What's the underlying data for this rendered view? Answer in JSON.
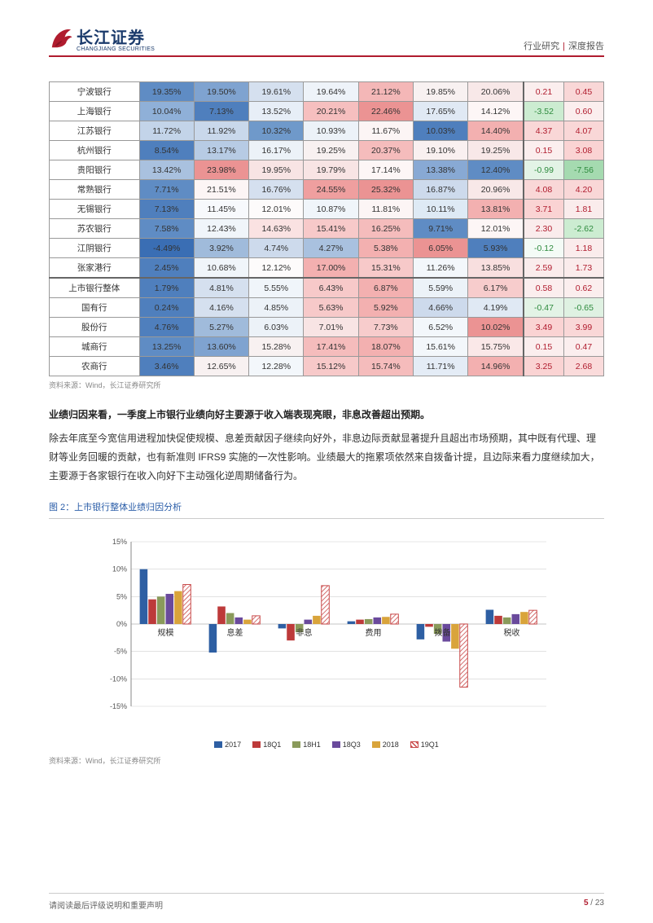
{
  "header": {
    "logo_cn": "长江证券",
    "logo_en": "CHANGJIANG SECURITIES",
    "category1": "行业研究",
    "category2": "深度报告"
  },
  "table": {
    "rows": [
      {
        "label": "宁波银行",
        "cells": [
          "19.35%",
          "19.50%",
          "19.61%",
          "19.64%",
          "21.12%",
          "19.85%",
          "20.06%",
          "0.21",
          "0.45"
        ]
      },
      {
        "label": "上海银行",
        "cells": [
          "10.04%",
          "7.13%",
          "13.52%",
          "20.21%",
          "22.46%",
          "17.65%",
          "14.12%",
          "-3.52",
          "0.60"
        ]
      },
      {
        "label": "江苏银行",
        "cells": [
          "11.72%",
          "11.92%",
          "10.32%",
          "10.93%",
          "11.67%",
          "10.03%",
          "14.40%",
          "4.37",
          "4.07"
        ]
      },
      {
        "label": "杭州银行",
        "cells": [
          "8.54%",
          "13.17%",
          "16.17%",
          "19.25%",
          "20.37%",
          "19.10%",
          "19.25%",
          "0.15",
          "3.08"
        ]
      },
      {
        "label": "贵阳银行",
        "cells": [
          "13.42%",
          "23.98%",
          "19.95%",
          "19.79%",
          "17.14%",
          "13.38%",
          "12.40%",
          "-0.99",
          "-7.56"
        ]
      },
      {
        "label": "常熟银行",
        "cells": [
          "7.71%",
          "21.51%",
          "16.76%",
          "24.55%",
          "25.32%",
          "16.87%",
          "20.96%",
          "4.08",
          "4.20"
        ]
      },
      {
        "label": "无锡银行",
        "cells": [
          "7.13%",
          "11.45%",
          "12.01%",
          "10.87%",
          "11.81%",
          "10.11%",
          "13.81%",
          "3.71",
          "1.81"
        ]
      },
      {
        "label": "苏农银行",
        "cells": [
          "7.58%",
          "12.43%",
          "14.63%",
          "15.41%",
          "16.25%",
          "9.71%",
          "12.01%",
          "2.30",
          "-2.62"
        ]
      },
      {
        "label": "江阴银行",
        "cells": [
          "-4.49%",
          "3.92%",
          "4.74%",
          "4.27%",
          "5.38%",
          "6.05%",
          "5.93%",
          "-0.12",
          "1.18"
        ]
      },
      {
        "label": "张家港行",
        "cells": [
          "2.45%",
          "10.68%",
          "12.12%",
          "17.00%",
          "15.31%",
          "11.26%",
          "13.85%",
          "2.59",
          "1.73"
        ]
      },
      {
        "label": "上市银行整体",
        "cells": [
          "1.79%",
          "4.81%",
          "5.55%",
          "6.43%",
          "6.87%",
          "5.59%",
          "6.17%",
          "0.58",
          "0.62"
        ],
        "thick": true
      },
      {
        "label": "国有行",
        "cells": [
          "0.24%",
          "4.16%",
          "4.85%",
          "5.63%",
          "5.92%",
          "4.66%",
          "4.19%",
          "-0.47",
          "-0.65"
        ]
      },
      {
        "label": "股份行",
        "cells": [
          "4.76%",
          "5.27%",
          "6.03%",
          "7.01%",
          "7.73%",
          "6.52%",
          "10.02%",
          "3.49",
          "3.99"
        ]
      },
      {
        "label": "城商行",
        "cells": [
          "13.25%",
          "13.60%",
          "15.28%",
          "17.41%",
          "18.07%",
          "15.61%",
          "15.75%",
          "0.15",
          "0.47"
        ]
      },
      {
        "label": "农商行",
        "cells": [
          "3.46%",
          "12.65%",
          "12.28%",
          "15.12%",
          "15.74%",
          "11.71%",
          "14.96%",
          "3.25",
          "2.68"
        ]
      }
    ],
    "cell_colors": [
      [
        "#5f8cc4",
        "#7fa3d0",
        "#d5e0ef",
        "#eef3f9",
        "#f4b7b7",
        "#f8f1f1",
        "#f8e8e8",
        "#fbeeee",
        "#f9d7d7"
      ],
      [
        "#8fb0d8",
        "#4f7fbd",
        "#e7eef7",
        "#f6bfbf",
        "#eb9393",
        "#e0e9f4",
        "#fdf6f6",
        "#ccecd1",
        "#fbeeee"
      ],
      [
        "#c3d4e9",
        "#c9d8eb",
        "#6f99ca",
        "#ecf2f8",
        "#fcf5f5",
        "#4f7fbd",
        "#f3b0b0",
        "#f9d7d7",
        "#f9d7d7"
      ],
      [
        "#4f7fbd",
        "#b7cbe4",
        "#ecf2f8",
        "#f8f1f1",
        "#f5bcbc",
        "#f9f0f0",
        "#f8e8e8",
        "#fbeeee",
        "#fad3d3"
      ],
      [
        "#a9c1df",
        "#eb9393",
        "#f8e4e4",
        "#f8e4e4",
        "#fdf6f6",
        "#88a9d4",
        "#5f8cc4",
        "#e3f3e6",
        "#a5dab0"
      ],
      [
        "#5f8cc4",
        "#fcf5f5",
        "#d5e0ef",
        "#ef9f9f",
        "#eb9393",
        "#cddaec",
        "#f8e8e8",
        "#f9d7d7",
        "#f9d7d7"
      ],
      [
        "#4f7fbd",
        "#f7f9fc",
        "#fdfbfb",
        "#f0f5fa",
        "#fcf5f5",
        "#deeaf5",
        "#f3b0b0",
        "#fad3d3",
        "#faecec"
      ],
      [
        "#5f8cc4",
        "#f0f5fa",
        "#fae2e2",
        "#f7c9c9",
        "#f5bcbc",
        "#5f8cc4",
        "#fdf6f6",
        "#faecec",
        "#ccecd1"
      ],
      [
        "#3a6eb4",
        "#a0bbdb",
        "#cddaec",
        "#a9c1df",
        "#f3b0b0",
        "#eb9393",
        "#4f7fbd",
        "#f4fbf6",
        "#faecec"
      ],
      [
        "#4f7fbd",
        "#f0f5fa",
        "#fdfbfb",
        "#f3b0b0",
        "#f7c9c9",
        "#f3f7fb",
        "#f8dfdf",
        "#faecec",
        "#faecec"
      ],
      [
        "#4f7fbd",
        "#d5e0ef",
        "#f0f5fa",
        "#f7c9c9",
        "#f3b0b0",
        "#ecf2f8",
        "#f7cccc",
        "#fbeeee",
        "#fbeeee"
      ],
      [
        "#4f7fbd",
        "#d5e0ef",
        "#ecf2f8",
        "#f7c9c9",
        "#f3b0b0",
        "#cddaec",
        "#e0e9f4",
        "#e3f3e6",
        "#dff1e2"
      ],
      [
        "#4f7fbd",
        "#a0bbdb",
        "#ecf2f8",
        "#f8e4e4",
        "#f7cccc",
        "#f3f7fb",
        "#eb9393",
        "#fad3d3",
        "#f9d7d7"
      ],
      [
        "#5f8cc4",
        "#7fa3d0",
        "#f8f1f1",
        "#f5bcbc",
        "#f3b0b0",
        "#f3f7fb",
        "#fae8e8",
        "#fbeeee",
        "#fbeeee"
      ],
      [
        "#4f7fbd",
        "#f8f1f1",
        "#f3f7fb",
        "#f7c9c9",
        "#f5bcbc",
        "#e4ecf6",
        "#f3b0b0",
        "#fad3d3",
        "#fadbdb"
      ]
    ]
  },
  "source_text": "资料来源：Wind，长江证券研究所",
  "para_title": "业绩归因来看，一季度上市银行业绩向好主要源于收入端表现亮眼，非息改善超出预期。",
  "para_body": "除去年底至今宽信用进程加快促使规模、息差贡献因子继续向好外，非息边际贡献显著提升且超出市场预期，其中既有代理、理财等业务回暖的贡献，也有新准则 IFRS9 实施的一次性影响。业绩最大的拖累项依然来自拨备计提，且边际来看力度继续加大，主要源于各家银行在收入向好下主动强化逆周期储备行为。",
  "figure": {
    "title": "图 2：上市银行整体业绩归因分析",
    "type": "bar",
    "categories": [
      "规模",
      "息差",
      "非息",
      "费用",
      "拨备",
      "税收"
    ],
    "series": [
      {
        "name": "2017",
        "color": "#2e5fa3",
        "values": [
          10,
          -5.2,
          -0.8,
          0.5,
          -2.8,
          2.6
        ]
      },
      {
        "name": "18Q1",
        "color": "#bd3a3a",
        "values": [
          4.5,
          3.2,
          -3.0,
          0.8,
          -0.5,
          1.5
        ]
      },
      {
        "name": "18H1",
        "color": "#8a9a5b",
        "values": [
          5.0,
          2.0,
          -1.5,
          0.9,
          -1.8,
          1.2
        ]
      },
      {
        "name": "18Q3",
        "color": "#6a4a9c",
        "values": [
          5.5,
          1.2,
          0.8,
          1.2,
          -3.2,
          1.8
        ]
      },
      {
        "name": "2018",
        "color": "#d9a43b",
        "values": [
          6.0,
          0.8,
          1.5,
          1.3,
          -4.5,
          2.2
        ]
      },
      {
        "name": "19Q1",
        "color": "#c94a4a",
        "hatch": true,
        "values": [
          7.2,
          1.5,
          7.0,
          1.8,
          -11.5,
          2.5
        ]
      }
    ],
    "ylim": [
      -15,
      15
    ],
    "ytick_step": 5,
    "ylabel_suffix": "%",
    "grid_color": "#d0d0d0",
    "axis_color": "#888",
    "label_fontsize": 9
  },
  "footer": {
    "disclaimer": "请阅读最后评级说明和重要声明",
    "page_current": "5",
    "page_total": "23"
  }
}
